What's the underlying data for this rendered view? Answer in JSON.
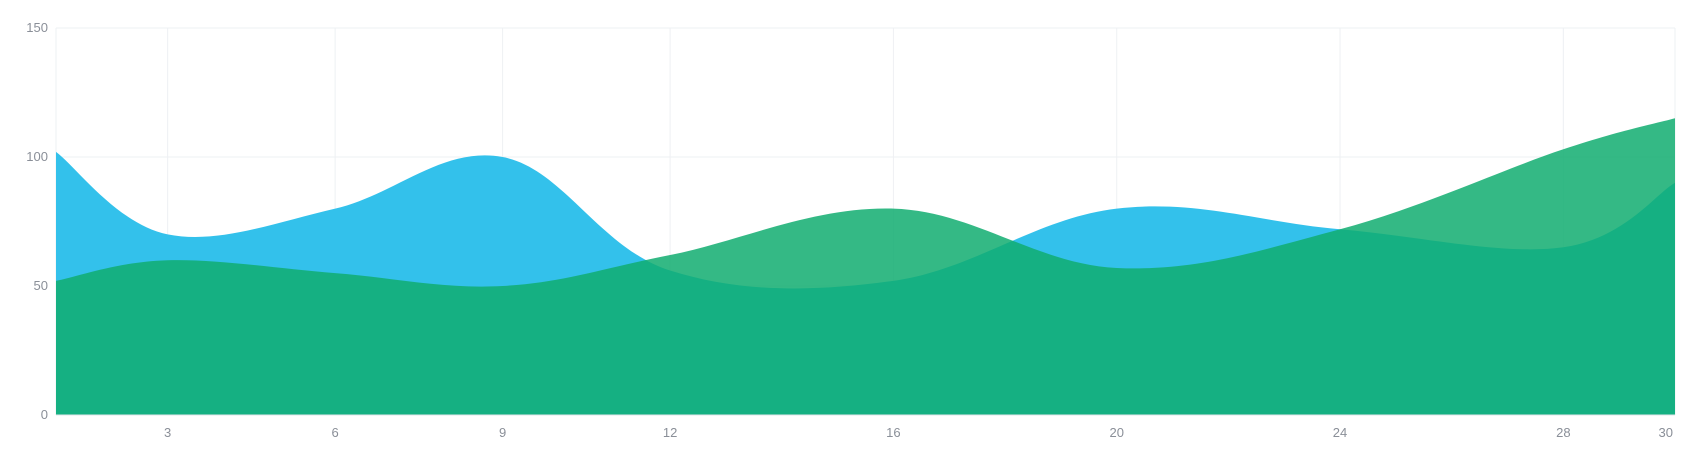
{
  "chart_data": {
    "type": "area",
    "x": [
      1,
      3,
      6,
      9,
      12,
      16,
      20,
      24,
      28,
      30
    ],
    "x_ticks": [
      "3",
      "6",
      "9",
      "12",
      "16",
      "20",
      "24",
      "28",
      "30"
    ],
    "y_ticks": [
      "0",
      "50",
      "100",
      "150"
    ],
    "ylim": [
      0,
      150
    ],
    "grid": true,
    "series": [
      {
        "values": [
          102,
          70,
          80,
          100,
          56,
          52,
          80,
          72,
          65,
          90
        ],
        "color": "#33c1eb"
      },
      {
        "values": [
          52,
          60,
          55,
          50,
          62,
          80,
          57,
          72,
          103,
          115
        ],
        "color": "#11ad70"
      }
    ]
  }
}
